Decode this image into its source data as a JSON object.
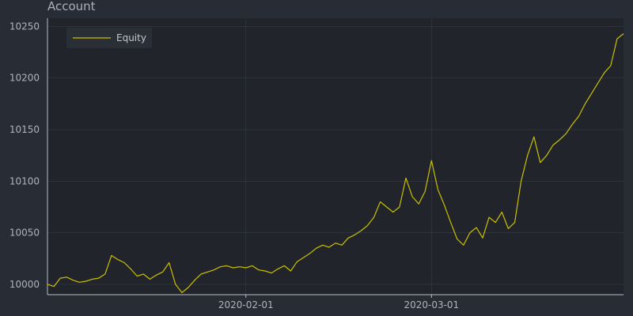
{
  "chart_data": {
    "type": "line",
    "title": "Account",
    "xlabel": "",
    "ylabel": "",
    "x_start": "2020-01-01",
    "x_end": "2020-03-31",
    "x_ticks": [
      "2020-02-01",
      "2020-03-01"
    ],
    "ylim": [
      9990,
      10258
    ],
    "y_ticks": [
      10000,
      10050,
      10100,
      10150,
      10200,
      10250
    ],
    "grid": true,
    "legend_position": "top-left",
    "colors": {
      "background": "#282c34",
      "plot_area": "#21242b",
      "grid": "#363b43",
      "axis": "#b8bec7",
      "series": "#c9c000"
    },
    "series": [
      {
        "name": "Equity",
        "points": [
          [
            "2020-01-01",
            10000
          ],
          [
            "2020-01-02",
            9998
          ],
          [
            "2020-01-03",
            10006
          ],
          [
            "2020-01-04",
            10007
          ],
          [
            "2020-01-05",
            10004
          ],
          [
            "2020-01-06",
            10002
          ],
          [
            "2020-01-07",
            10003
          ],
          [
            "2020-01-08",
            10005
          ],
          [
            "2020-01-09",
            10006
          ],
          [
            "2020-01-10",
            10010
          ],
          [
            "2020-01-11",
            10028
          ],
          [
            "2020-01-12",
            10024
          ],
          [
            "2020-01-13",
            10021
          ],
          [
            "2020-01-14",
            10015
          ],
          [
            "2020-01-15",
            10008
          ],
          [
            "2020-01-16",
            10010
          ],
          [
            "2020-01-17",
            10005
          ],
          [
            "2020-01-18",
            10009
          ],
          [
            "2020-01-19",
            10012
          ],
          [
            "2020-01-20",
            10021
          ],
          [
            "2020-01-21",
            10000
          ],
          [
            "2020-01-22",
            9992
          ],
          [
            "2020-01-23",
            9997
          ],
          [
            "2020-01-24",
            10004
          ],
          [
            "2020-01-25",
            10010
          ],
          [
            "2020-01-26",
            10012
          ],
          [
            "2020-01-27",
            10014
          ],
          [
            "2020-01-28",
            10017
          ],
          [
            "2020-01-29",
            10018
          ],
          [
            "2020-01-30",
            10016
          ],
          [
            "2020-01-31",
            10017
          ],
          [
            "2020-02-01",
            10016
          ],
          [
            "2020-02-02",
            10018
          ],
          [
            "2020-02-03",
            10014
          ],
          [
            "2020-02-04",
            10013
          ],
          [
            "2020-02-05",
            10011
          ],
          [
            "2020-02-06",
            10015
          ],
          [
            "2020-02-07",
            10018
          ],
          [
            "2020-02-08",
            10013
          ],
          [
            "2020-02-09",
            10022
          ],
          [
            "2020-02-10",
            10026
          ],
          [
            "2020-02-11",
            10030
          ],
          [
            "2020-02-12",
            10035
          ],
          [
            "2020-02-13",
            10038
          ],
          [
            "2020-02-14",
            10036
          ],
          [
            "2020-02-15",
            10040
          ],
          [
            "2020-02-16",
            10038
          ],
          [
            "2020-02-17",
            10045
          ],
          [
            "2020-02-18",
            10048
          ],
          [
            "2020-02-19",
            10052
          ],
          [
            "2020-02-20",
            10057
          ],
          [
            "2020-02-21",
            10065
          ],
          [
            "2020-02-22",
            10080
          ],
          [
            "2020-02-23",
            10075
          ],
          [
            "2020-02-24",
            10070
          ],
          [
            "2020-02-25",
            10075
          ],
          [
            "2020-02-26",
            10103
          ],
          [
            "2020-02-27",
            10085
          ],
          [
            "2020-02-28",
            10078
          ],
          [
            "2020-02-29",
            10090
          ],
          [
            "2020-03-01",
            10120
          ],
          [
            "2020-03-02",
            10092
          ],
          [
            "2020-03-03",
            10077
          ],
          [
            "2020-03-04",
            10060
          ],
          [
            "2020-03-05",
            10044
          ],
          [
            "2020-03-06",
            10038
          ],
          [
            "2020-03-07",
            10050
          ],
          [
            "2020-03-08",
            10055
          ],
          [
            "2020-03-09",
            10045
          ],
          [
            "2020-03-10",
            10065
          ],
          [
            "2020-03-11",
            10060
          ],
          [
            "2020-03-12",
            10070
          ],
          [
            "2020-03-13",
            10054
          ],
          [
            "2020-03-14",
            10060
          ],
          [
            "2020-03-15",
            10100
          ],
          [
            "2020-03-16",
            10125
          ],
          [
            "2020-03-17",
            10143
          ],
          [
            "2020-03-18",
            10118
          ],
          [
            "2020-03-19",
            10125
          ],
          [
            "2020-03-20",
            10135
          ],
          [
            "2020-03-21",
            10140
          ],
          [
            "2020-03-22",
            10146
          ],
          [
            "2020-03-23",
            10155
          ],
          [
            "2020-03-24",
            10163
          ],
          [
            "2020-03-25",
            10175
          ],
          [
            "2020-03-26",
            10185
          ],
          [
            "2020-03-27",
            10195
          ],
          [
            "2020-03-28",
            10205
          ],
          [
            "2020-03-29",
            10212
          ],
          [
            "2020-03-30",
            10238
          ],
          [
            "2020-03-31",
            10243
          ]
        ]
      }
    ]
  }
}
